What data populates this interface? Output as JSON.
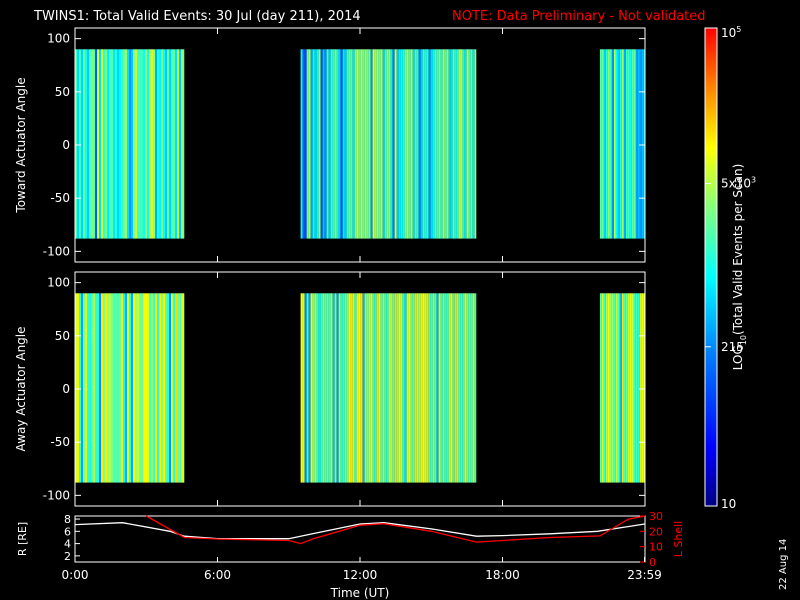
{
  "header": {
    "title": "TWINS1: Total Valid Events: 30 Jul (day 211), 2014",
    "note": "NOTE: Data Preliminary - Not validated",
    "title_color": "#ffffff",
    "note_color": "#ff0000"
  },
  "side_stamp": "22 Aug 14",
  "chart_data": [
    {
      "type": "heatmap",
      "panel": "toward",
      "ylabel": "Toward Actuator Angle",
      "ylim": [
        -110,
        110
      ],
      "yticks": [
        -100,
        -50,
        0,
        50,
        100
      ],
      "xlim": [
        0,
        24
      ],
      "angle_range": [
        -88,
        90
      ],
      "data_intervals_hours": [
        [
          0.0,
          4.6
        ],
        [
          9.5,
          16.9
        ],
        [
          22.1,
          23.99
        ]
      ],
      "typical_value_range": [
        400,
        8000
      ]
    },
    {
      "type": "heatmap",
      "panel": "away",
      "ylabel": "Away Actuator Angle",
      "ylim": [
        -110,
        110
      ],
      "yticks": [
        -100,
        -50,
        0,
        50,
        100
      ],
      "xlim": [
        0,
        24
      ],
      "angle_range": [
        -88,
        90
      ],
      "data_intervals_hours": [
        [
          0.0,
          4.6
        ],
        [
          9.5,
          16.9
        ],
        [
          22.1,
          23.99
        ]
      ],
      "typical_value_range": [
        1000,
        15000
      ]
    },
    {
      "type": "line",
      "panel": "orbit",
      "ylabel": "R [RE]",
      "ylabel_right": "L Shell",
      "ylim": [
        1,
        8.5
      ],
      "yticks": [
        2,
        4,
        6,
        8
      ],
      "ylim_right": [
        0,
        30
      ],
      "yticks_right": [
        0,
        10,
        20,
        30
      ],
      "xlim": [
        0,
        24
      ],
      "xticks": [
        {
          "v": 0,
          "label": "0:00"
        },
        {
          "v": 6,
          "label": "6:00"
        },
        {
          "v": 12,
          "label": "12:00"
        },
        {
          "v": 18,
          "label": "18:00"
        },
        {
          "v": 23.98,
          "label": "23:59"
        }
      ],
      "xlabel": "Time (UT)",
      "series": [
        {
          "color": "#ffffff",
          "axis": "left",
          "x": [
            0,
            2,
            4,
            4.6,
            6,
            9,
            10,
            12,
            13,
            15,
            16.9,
            18,
            20,
            22,
            23.99
          ],
          "y": [
            7.1,
            7.4,
            6.0,
            5.2,
            4.8,
            4.8,
            5.6,
            7.2,
            7.4,
            6.4,
            5.2,
            5.3,
            5.6,
            6.0,
            7.2
          ]
        },
        {
          "color": "#ff0000",
          "axis": "right",
          "x": [
            3.0,
            4.6,
            6,
            9,
            9.5,
            10,
            12,
            13,
            15,
            16.9,
            18,
            20,
            22.1,
            23.3,
            23.99
          ],
          "y": [
            30,
            16,
            15,
            14,
            12,
            15,
            24,
            25,
            20,
            13,
            14,
            16,
            17,
            28,
            30
          ]
        }
      ]
    }
  ],
  "colorbar": {
    "label": "LOG10(Total Valid Events per Scan)",
    "label_main": "LOG",
    "label_sub": "10",
    "label_rest": "(Total Valid Events per Scan)",
    "range": [
      10,
      100000
    ],
    "scale": "log",
    "ticks": [
      {
        "value": 100000,
        "base": "10",
        "exp": "5"
      },
      {
        "value": 5000,
        "base": "5x10",
        "exp": "3"
      },
      {
        "value": 215,
        "base": "215",
        "exp": ""
      },
      {
        "value": 10,
        "base": "10",
        "exp": ""
      }
    ],
    "colors": [
      "#000080",
      "#0000ff",
      "#0080ff",
      "#00ffff",
      "#80ff80",
      "#ffff00",
      "#ff8000",
      "#ff0000"
    ]
  }
}
